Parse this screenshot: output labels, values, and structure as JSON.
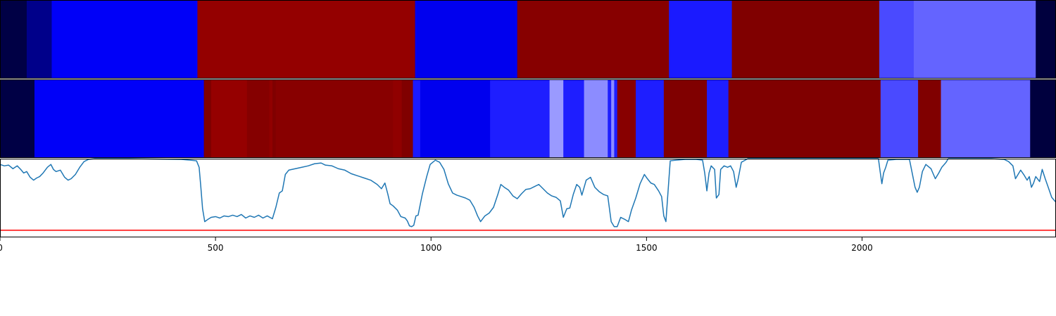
{
  "chart_data": [
    {
      "type": "heatmap",
      "segments": [
        {
          "x0": 0,
          "x1": 62,
          "color": "#000045"
        },
        {
          "x0": 62,
          "x1": 120,
          "color": "#00008a"
        },
        {
          "x0": 120,
          "x1": 458,
          "color": "#0000f8"
        },
        {
          "x0": 458,
          "x1": 963,
          "color": "#940000"
        },
        {
          "x0": 963,
          "x1": 1200,
          "color": "#0000ee"
        },
        {
          "x0": 1200,
          "x1": 1552,
          "color": "#870000"
        },
        {
          "x0": 1552,
          "x1": 1698,
          "color": "#1a1aff"
        },
        {
          "x0": 1698,
          "x1": 2040,
          "color": "#800000"
        },
        {
          "x0": 2040,
          "x1": 2120,
          "color": "#4a4aff"
        },
        {
          "x0": 2120,
          "x1": 2403,
          "color": "#6464ff"
        },
        {
          "x0": 2403,
          "x1": 2450,
          "color": "#00003e"
        }
      ]
    },
    {
      "type": "heatmap",
      "segments": [
        {
          "x0": 0,
          "x1": 80,
          "color": "#000045"
        },
        {
          "x0": 80,
          "x1": 473,
          "color": "#0000f8"
        },
        {
          "x0": 473,
          "x1": 490,
          "color": "#800000"
        },
        {
          "x0": 490,
          "x1": 573,
          "color": "#950000"
        },
        {
          "x0": 573,
          "x1": 625,
          "color": "#850000"
        },
        {
          "x0": 625,
          "x1": 632,
          "color": "#900000"
        },
        {
          "x0": 632,
          "x1": 640,
          "color": "#800000"
        },
        {
          "x0": 640,
          "x1": 912,
          "color": "#880000"
        },
        {
          "x0": 912,
          "x1": 932,
          "color": "#900000"
        },
        {
          "x0": 932,
          "x1": 958,
          "color": "#800000"
        },
        {
          "x0": 958,
          "x1": 975,
          "color": "#1a1aff"
        },
        {
          "x0": 975,
          "x1": 1137,
          "color": "#0000ee"
        },
        {
          "x0": 1137,
          "x1": 1275,
          "color": "#1e1eff"
        },
        {
          "x0": 1275,
          "x1": 1307,
          "color": "#9a9aff"
        },
        {
          "x0": 1307,
          "x1": 1355,
          "color": "#1e1eff"
        },
        {
          "x0": 1355,
          "x1": 1410,
          "color": "#8c8cff"
        },
        {
          "x0": 1410,
          "x1": 1418,
          "color": "#1e1eff"
        },
        {
          "x0": 1418,
          "x1": 1425,
          "color": "#8c8cff"
        },
        {
          "x0": 1425,
          "x1": 1432,
          "color": "#1e1eff"
        },
        {
          "x0": 1432,
          "x1": 1475,
          "color": "#880000"
        },
        {
          "x0": 1475,
          "x1": 1540,
          "color": "#1e1eff"
        },
        {
          "x0": 1540,
          "x1": 1640,
          "color": "#800000"
        },
        {
          "x0": 1640,
          "x1": 1690,
          "color": "#1e1eff"
        },
        {
          "x0": 1690,
          "x1": 2043,
          "color": "#800000"
        },
        {
          "x0": 2043,
          "x1": 2130,
          "color": "#4a4aff"
        },
        {
          "x0": 2130,
          "x1": 2183,
          "color": "#800000"
        },
        {
          "x0": 2183,
          "x1": 2390,
          "color": "#6464ff"
        },
        {
          "x0": 2390,
          "x1": 2450,
          "color": "#00003e"
        }
      ]
    },
    {
      "type": "line",
      "xlim": [
        0,
        2450
      ],
      "ylim": [
        -0.1,
        1.0
      ],
      "xticks": [
        0,
        500,
        1000,
        1500,
        2000
      ],
      "grid": false,
      "series": [
        {
          "color": "#1f77b4",
          "points": [
            [
              0,
              0.92
            ],
            [
              10,
              0.9
            ],
            [
              20,
              0.91
            ],
            [
              30,
              0.86
            ],
            [
              40,
              0.9
            ],
            [
              48,
              0.85
            ],
            [
              55,
              0.8
            ],
            [
              62,
              0.82
            ],
            [
              70,
              0.74
            ],
            [
              78,
              0.7
            ],
            [
              85,
              0.73
            ],
            [
              92,
              0.75
            ],
            [
              100,
              0.8
            ],
            [
              110,
              0.88
            ],
            [
              118,
              0.92
            ],
            [
              124,
              0.85
            ],
            [
              130,
              0.82
            ],
            [
              140,
              0.84
            ],
            [
              150,
              0.74
            ],
            [
              158,
              0.7
            ],
            [
              165,
              0.72
            ],
            [
              175,
              0.78
            ],
            [
              185,
              0.88
            ],
            [
              195,
              0.96
            ],
            [
              205,
              0.99
            ],
            [
              220,
              1.0
            ],
            [
              300,
              1.0
            ],
            [
              420,
              0.99
            ],
            [
              440,
              0.98
            ],
            [
              456,
              0.97
            ],
            [
              462,
              0.88
            ],
            [
              466,
              0.6
            ],
            [
              470,
              0.3
            ],
            [
              475,
              0.12
            ],
            [
              482,
              0.15
            ],
            [
              490,
              0.18
            ],
            [
              500,
              0.19
            ],
            [
              510,
              0.17
            ],
            [
              520,
              0.2
            ],
            [
              530,
              0.19
            ],
            [
              540,
              0.21
            ],
            [
              550,
              0.19
            ],
            [
              560,
              0.22
            ],
            [
              570,
              0.17
            ],
            [
              580,
              0.2
            ],
            [
              590,
              0.18
            ],
            [
              600,
              0.21
            ],
            [
              610,
              0.17
            ],
            [
              620,
              0.2
            ],
            [
              632,
              0.16
            ],
            [
              640,
              0.32
            ],
            [
              648,
              0.52
            ],
            [
              655,
              0.55
            ],
            [
              662,
              0.78
            ],
            [
              670,
              0.84
            ],
            [
              685,
              0.86
            ],
            [
              700,
              0.88
            ],
            [
              715,
              0.9
            ],
            [
              730,
              0.93
            ],
            [
              745,
              0.94
            ],
            [
              755,
              0.91
            ],
            [
              770,
              0.9
            ],
            [
              785,
              0.86
            ],
            [
              800,
              0.84
            ],
            [
              815,
              0.79
            ],
            [
              830,
              0.76
            ],
            [
              845,
              0.73
            ],
            [
              860,
              0.7
            ],
            [
              875,
              0.64
            ],
            [
              885,
              0.58
            ],
            [
              893,
              0.66
            ],
            [
              900,
              0.5
            ],
            [
              905,
              0.37
            ],
            [
              912,
              0.34
            ],
            [
              922,
              0.28
            ],
            [
              930,
              0.19
            ],
            [
              940,
              0.17
            ],
            [
              945,
              0.13
            ],
            [
              950,
              0.06
            ],
            [
              955,
              0.05
            ],
            [
              960,
              0.07
            ],
            [
              965,
              0.2
            ],
            [
              970,
              0.21
            ],
            [
              980,
              0.51
            ],
            [
              990,
              0.75
            ],
            [
              998,
              0.92
            ],
            [
              1010,
              0.98
            ],
            [
              1020,
              0.95
            ],
            [
              1030,
              0.85
            ],
            [
              1040,
              0.65
            ],
            [
              1050,
              0.52
            ],
            [
              1060,
              0.49
            ],
            [
              1070,
              0.47
            ],
            [
              1080,
              0.45
            ],
            [
              1090,
              0.42
            ],
            [
              1100,
              0.32
            ],
            [
              1108,
              0.2
            ],
            [
              1115,
              0.12
            ],
            [
              1125,
              0.2
            ],
            [
              1135,
              0.24
            ],
            [
              1145,
              0.32
            ],
            [
              1155,
              0.5
            ],
            [
              1162,
              0.64
            ],
            [
              1170,
              0.6
            ],
            [
              1180,
              0.56
            ],
            [
              1190,
              0.48
            ],
            [
              1200,
              0.44
            ],
            [
              1210,
              0.51
            ],
            [
              1220,
              0.57
            ],
            [
              1230,
              0.58
            ],
            [
              1240,
              0.61
            ],
            [
              1250,
              0.64
            ],
            [
              1260,
              0.58
            ],
            [
              1270,
              0.52
            ],
            [
              1280,
              0.48
            ],
            [
              1290,
              0.46
            ],
            [
              1300,
              0.41
            ],
            [
              1307,
              0.18
            ],
            [
              1315,
              0.3
            ],
            [
              1322,
              0.31
            ],
            [
              1330,
              0.5
            ],
            [
              1338,
              0.64
            ],
            [
              1345,
              0.6
            ],
            [
              1350,
              0.49
            ],
            [
              1360,
              0.7
            ],
            [
              1370,
              0.74
            ],
            [
              1380,
              0.6
            ],
            [
              1390,
              0.54
            ],
            [
              1400,
              0.5
            ],
            [
              1410,
              0.48
            ],
            [
              1418,
              0.12
            ],
            [
              1425,
              0.05
            ],
            [
              1432,
              0.05
            ],
            [
              1440,
              0.18
            ],
            [
              1450,
              0.15
            ],
            [
              1458,
              0.12
            ],
            [
              1465,
              0.28
            ],
            [
              1475,
              0.45
            ],
            [
              1485,
              0.65
            ],
            [
              1495,
              0.78
            ],
            [
              1502,
              0.72
            ],
            [
              1510,
              0.66
            ],
            [
              1518,
              0.64
            ],
            [
              1528,
              0.55
            ],
            [
              1535,
              0.47
            ],
            [
              1540,
              0.2
            ],
            [
              1545,
              0.12
            ],
            [
              1550,
              0.55
            ],
            [
              1555,
              0.97
            ],
            [
              1570,
              0.98
            ],
            [
              1590,
              0.99
            ],
            [
              1615,
              0.99
            ],
            [
              1630,
              0.98
            ],
            [
              1635,
              0.8
            ],
            [
              1640,
              0.55
            ],
            [
              1645,
              0.8
            ],
            [
              1650,
              0.9
            ],
            [
              1658,
              0.85
            ],
            [
              1662,
              0.45
            ],
            [
              1668,
              0.5
            ],
            [
              1672,
              0.85
            ],
            [
              1680,
              0.9
            ],
            [
              1688,
              0.88
            ],
            [
              1695,
              0.9
            ],
            [
              1702,
              0.82
            ],
            [
              1708,
              0.6
            ],
            [
              1712,
              0.7
            ],
            [
              1720,
              0.95
            ],
            [
              1735,
              1.0
            ],
            [
              1800,
              1.0
            ],
            [
              2030,
              1.0
            ],
            [
              2038,
              1.0
            ],
            [
              2042,
              0.82
            ],
            [
              2046,
              0.65
            ],
            [
              2050,
              0.8
            ],
            [
              2055,
              0.88
            ],
            [
              2060,
              0.98
            ],
            [
              2080,
              0.99
            ],
            [
              2110,
              0.99
            ],
            [
              2118,
              0.75
            ],
            [
              2123,
              0.6
            ],
            [
              2128,
              0.53
            ],
            [
              2133,
              0.6
            ],
            [
              2140,
              0.82
            ],
            [
              2148,
              0.92
            ],
            [
              2160,
              0.86
            ],
            [
              2170,
              0.72
            ],
            [
              2178,
              0.8
            ],
            [
              2185,
              0.88
            ],
            [
              2195,
              0.95
            ],
            [
              2200,
              1.0
            ],
            [
              2300,
              1.0
            ],
            [
              2330,
              0.99
            ],
            [
              2340,
              0.96
            ],
            [
              2350,
              0.9
            ],
            [
              2356,
              0.72
            ],
            [
              2362,
              0.78
            ],
            [
              2368,
              0.84
            ],
            [
              2375,
              0.78
            ],
            [
              2383,
              0.7
            ],
            [
              2388,
              0.75
            ],
            [
              2393,
              0.6
            ],
            [
              2398,
              0.66
            ],
            [
              2403,
              0.75
            ],
            [
              2412,
              0.68
            ],
            [
              2418,
              0.85
            ],
            [
              2425,
              0.72
            ],
            [
              2432,
              0.6
            ],
            [
              2440,
              0.46
            ],
            [
              2450,
              0.39
            ]
          ]
        }
      ],
      "hline": {
        "y": 0.0,
        "color": "#ff0000"
      }
    }
  ]
}
